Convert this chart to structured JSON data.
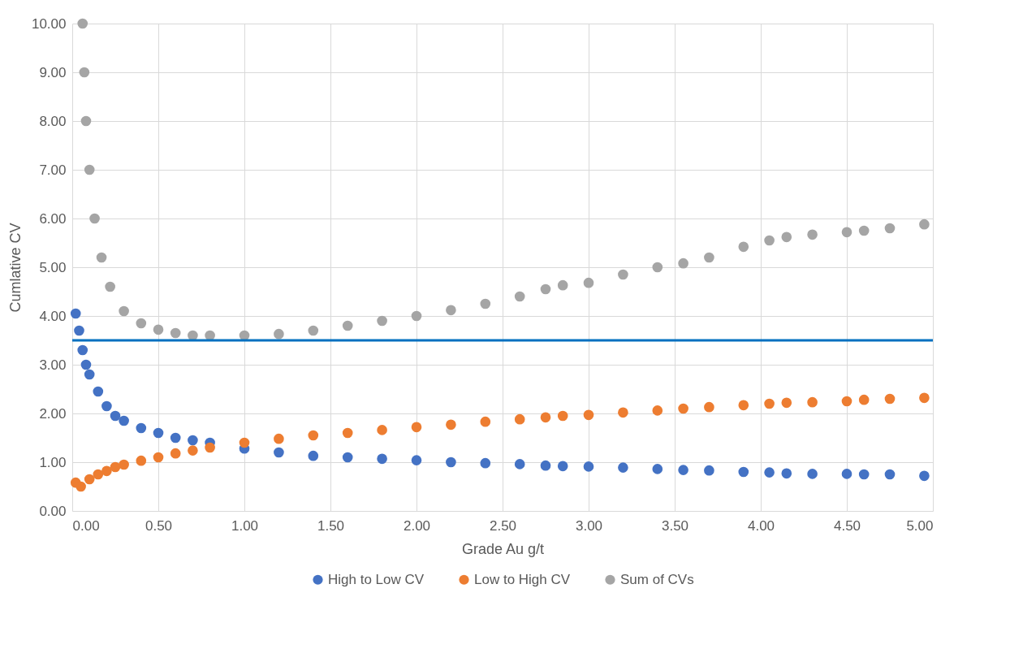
{
  "chart_data": {
    "type": "scatter",
    "xlabel": "Grade Au g/t",
    "ylabel": "Cumlative CV",
    "grid": true,
    "legend": "bottom",
    "marker": "circle",
    "xlim": [
      0,
      5
    ],
    "xticks": [
      {
        "value": 0,
        "label": "0.00"
      },
      {
        "value": 0.5,
        "label": "0.50"
      },
      {
        "value": 1,
        "label": "1.00"
      },
      {
        "value": 1.5,
        "label": "1.50"
      },
      {
        "value": 2,
        "label": "2.00"
      },
      {
        "value": 2.5,
        "label": "2.50"
      },
      {
        "value": 3,
        "label": "3.00"
      },
      {
        "value": 3.5,
        "label": "3.50"
      },
      {
        "value": 4,
        "label": "4.00"
      },
      {
        "value": 4.5,
        "label": "4.50"
      },
      {
        "value": 5,
        "label": "5.00"
      }
    ],
    "ylim": [
      0,
      10
    ],
    "yticks": [
      {
        "value": 0,
        "label": "0.00"
      },
      {
        "value": 1,
        "label": "1.00"
      },
      {
        "value": 2,
        "label": "2.00"
      },
      {
        "value": 3,
        "label": "3.00"
      },
      {
        "value": 4,
        "label": "4.00"
      },
      {
        "value": 5,
        "label": "5.00"
      },
      {
        "value": 6,
        "label": "6.00"
      },
      {
        "value": 7,
        "label": "7.00"
      },
      {
        "value": 8,
        "label": "8.00"
      },
      {
        "value": 9,
        "label": "9.00"
      },
      {
        "value": 10,
        "label": "10.00"
      }
    ],
    "x": [
      0.02,
      0.04,
      0.06,
      0.08,
      0.1,
      0.15,
      0.2,
      0.25,
      0.3,
      0.4,
      0.5,
      0.6,
      0.7,
      0.8,
      1.0,
      1.2,
      1.4,
      1.6,
      1.8,
      2.0,
      2.2,
      2.4,
      2.6,
      2.75,
      2.85,
      3.0,
      3.2,
      3.4,
      3.55,
      3.7,
      3.9,
      4.05,
      4.15,
      4.3,
      4.5,
      4.6,
      4.75,
      4.95
    ],
    "series": [
      {
        "name": "High to Low CV",
        "color": "#4472c4",
        "values": [
          4.05,
          3.7,
          3.3,
          3.0,
          2.8,
          2.45,
          2.15,
          1.95,
          1.85,
          1.7,
          1.6,
          1.5,
          1.45,
          1.4,
          1.28,
          1.2,
          1.13,
          1.1,
          1.07,
          1.04,
          1.0,
          0.98,
          0.96,
          0.93,
          0.92,
          0.91,
          0.89,
          0.86,
          0.84,
          0.83,
          0.8,
          0.79,
          0.77,
          0.76,
          0.76,
          0.75,
          0.75,
          0.72
        ]
      },
      {
        "name": "Low to High CV",
        "color": "#ed7d31",
        "x": [
          0.02,
          0.05,
          0.1,
          0.15,
          0.2,
          0.25,
          0.3,
          0.4,
          0.5,
          0.6,
          0.7,
          0.8,
          1.0,
          1.2,
          1.4,
          1.6,
          1.8,
          2.0,
          2.2,
          2.4,
          2.6,
          2.75,
          2.85,
          3.0,
          3.2,
          3.4,
          3.55,
          3.7,
          3.9,
          4.05,
          4.15,
          4.3,
          4.5,
          4.6,
          4.75,
          4.95
        ],
        "values": [
          0.58,
          0.5,
          0.65,
          0.75,
          0.82,
          0.9,
          0.95,
          1.03,
          1.1,
          1.18,
          1.24,
          1.3,
          1.4,
          1.48,
          1.55,
          1.6,
          1.66,
          1.72,
          1.77,
          1.83,
          1.88,
          1.92,
          1.95,
          1.97,
          2.02,
          2.06,
          2.1,
          2.13,
          2.17,
          2.2,
          2.22,
          2.23,
          2.25,
          2.28,
          2.3,
          2.32
        ]
      },
      {
        "name": "Sum of CVs",
        "color": "#a5a5a5",
        "x": [
          0.06,
          0.07,
          0.08,
          0.1,
          0.13,
          0.17,
          0.22,
          0.3,
          0.4,
          0.5,
          0.6,
          0.7,
          0.8,
          1.0,
          1.2,
          1.4,
          1.6,
          1.8,
          2.0,
          2.2,
          2.4,
          2.6,
          2.75,
          2.85,
          3.0,
          3.2,
          3.4,
          3.55,
          3.7,
          3.9,
          4.05,
          4.15,
          4.3,
          4.5,
          4.6,
          4.75,
          4.95
        ],
        "values": [
          10.0,
          9.0,
          8.0,
          7.0,
          6.0,
          5.2,
          4.6,
          4.1,
          3.85,
          3.72,
          3.65,
          3.6,
          3.6,
          3.6,
          3.63,
          3.7,
          3.8,
          3.9,
          4.0,
          4.12,
          4.25,
          4.4,
          4.55,
          4.63,
          4.68,
          4.85,
          5.0,
          5.08,
          5.2,
          5.42,
          5.55,
          5.62,
          5.67,
          5.72,
          5.75,
          5.8,
          5.88
        ]
      }
    ],
    "ref_lines": [
      {
        "axis": "y",
        "value": 3.5,
        "color": "#0070c0"
      }
    ]
  }
}
